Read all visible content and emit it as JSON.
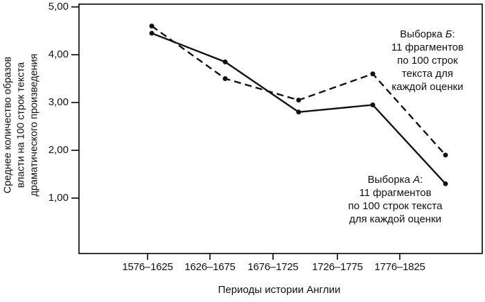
{
  "figure": {
    "y_axis_title_lines": [
      "Среднее количество образов",
      "власти на 100 строк текста",
      "драматического произведения"
    ],
    "x_axis_title": "Периоды истории Англии"
  },
  "annotations": {
    "sample_b": {
      "title_prefix": "Выборка ",
      "title_letter": "Б",
      "title_suffix": ":",
      "lines": [
        "11 фрагментов",
        "по 100 строк",
        "текста для",
        "каждой оценки"
      ]
    },
    "sample_a": {
      "title_prefix": "Выборка ",
      "title_letter": "А",
      "title_suffix": ":",
      "lines": [
        "11 фрагментов",
        "по 100 строк текста",
        "для каждой оценки"
      ]
    }
  },
  "chart_data": {
    "type": "line",
    "title": "",
    "xlabel": "Периоды истории Англии",
    "ylabel": "Среднее количество образов власти на 100 строк текста драматического произведения",
    "categories": [
      "1576–1625",
      "1626–1675",
      "1676–1725",
      "1726–1775",
      "1776–1825"
    ],
    "series": [
      {
        "name": "Выборка А",
        "line_style": "solid",
        "marker": "dot",
        "values": [
          4.45,
          3.85,
          2.8,
          2.95,
          1.3
        ]
      },
      {
        "name": "Выборка Б",
        "line_style": "dashed",
        "marker": "dot",
        "values": [
          4.6,
          3.5,
          3.05,
          3.6,
          1.9
        ]
      }
    ],
    "yticks": [
      {
        "value": 5,
        "label": "5,00"
      },
      {
        "value": 4,
        "label": "4,00"
      },
      {
        "value": 3,
        "label": "3,00"
      },
      {
        "value": 2,
        "label": "2,00"
      },
      {
        "value": 1,
        "label": "1,00"
      }
    ],
    "ylim": [
      0,
      5
    ],
    "grid": false,
    "legend": "inline-annotations",
    "line_color": "#111111"
  }
}
